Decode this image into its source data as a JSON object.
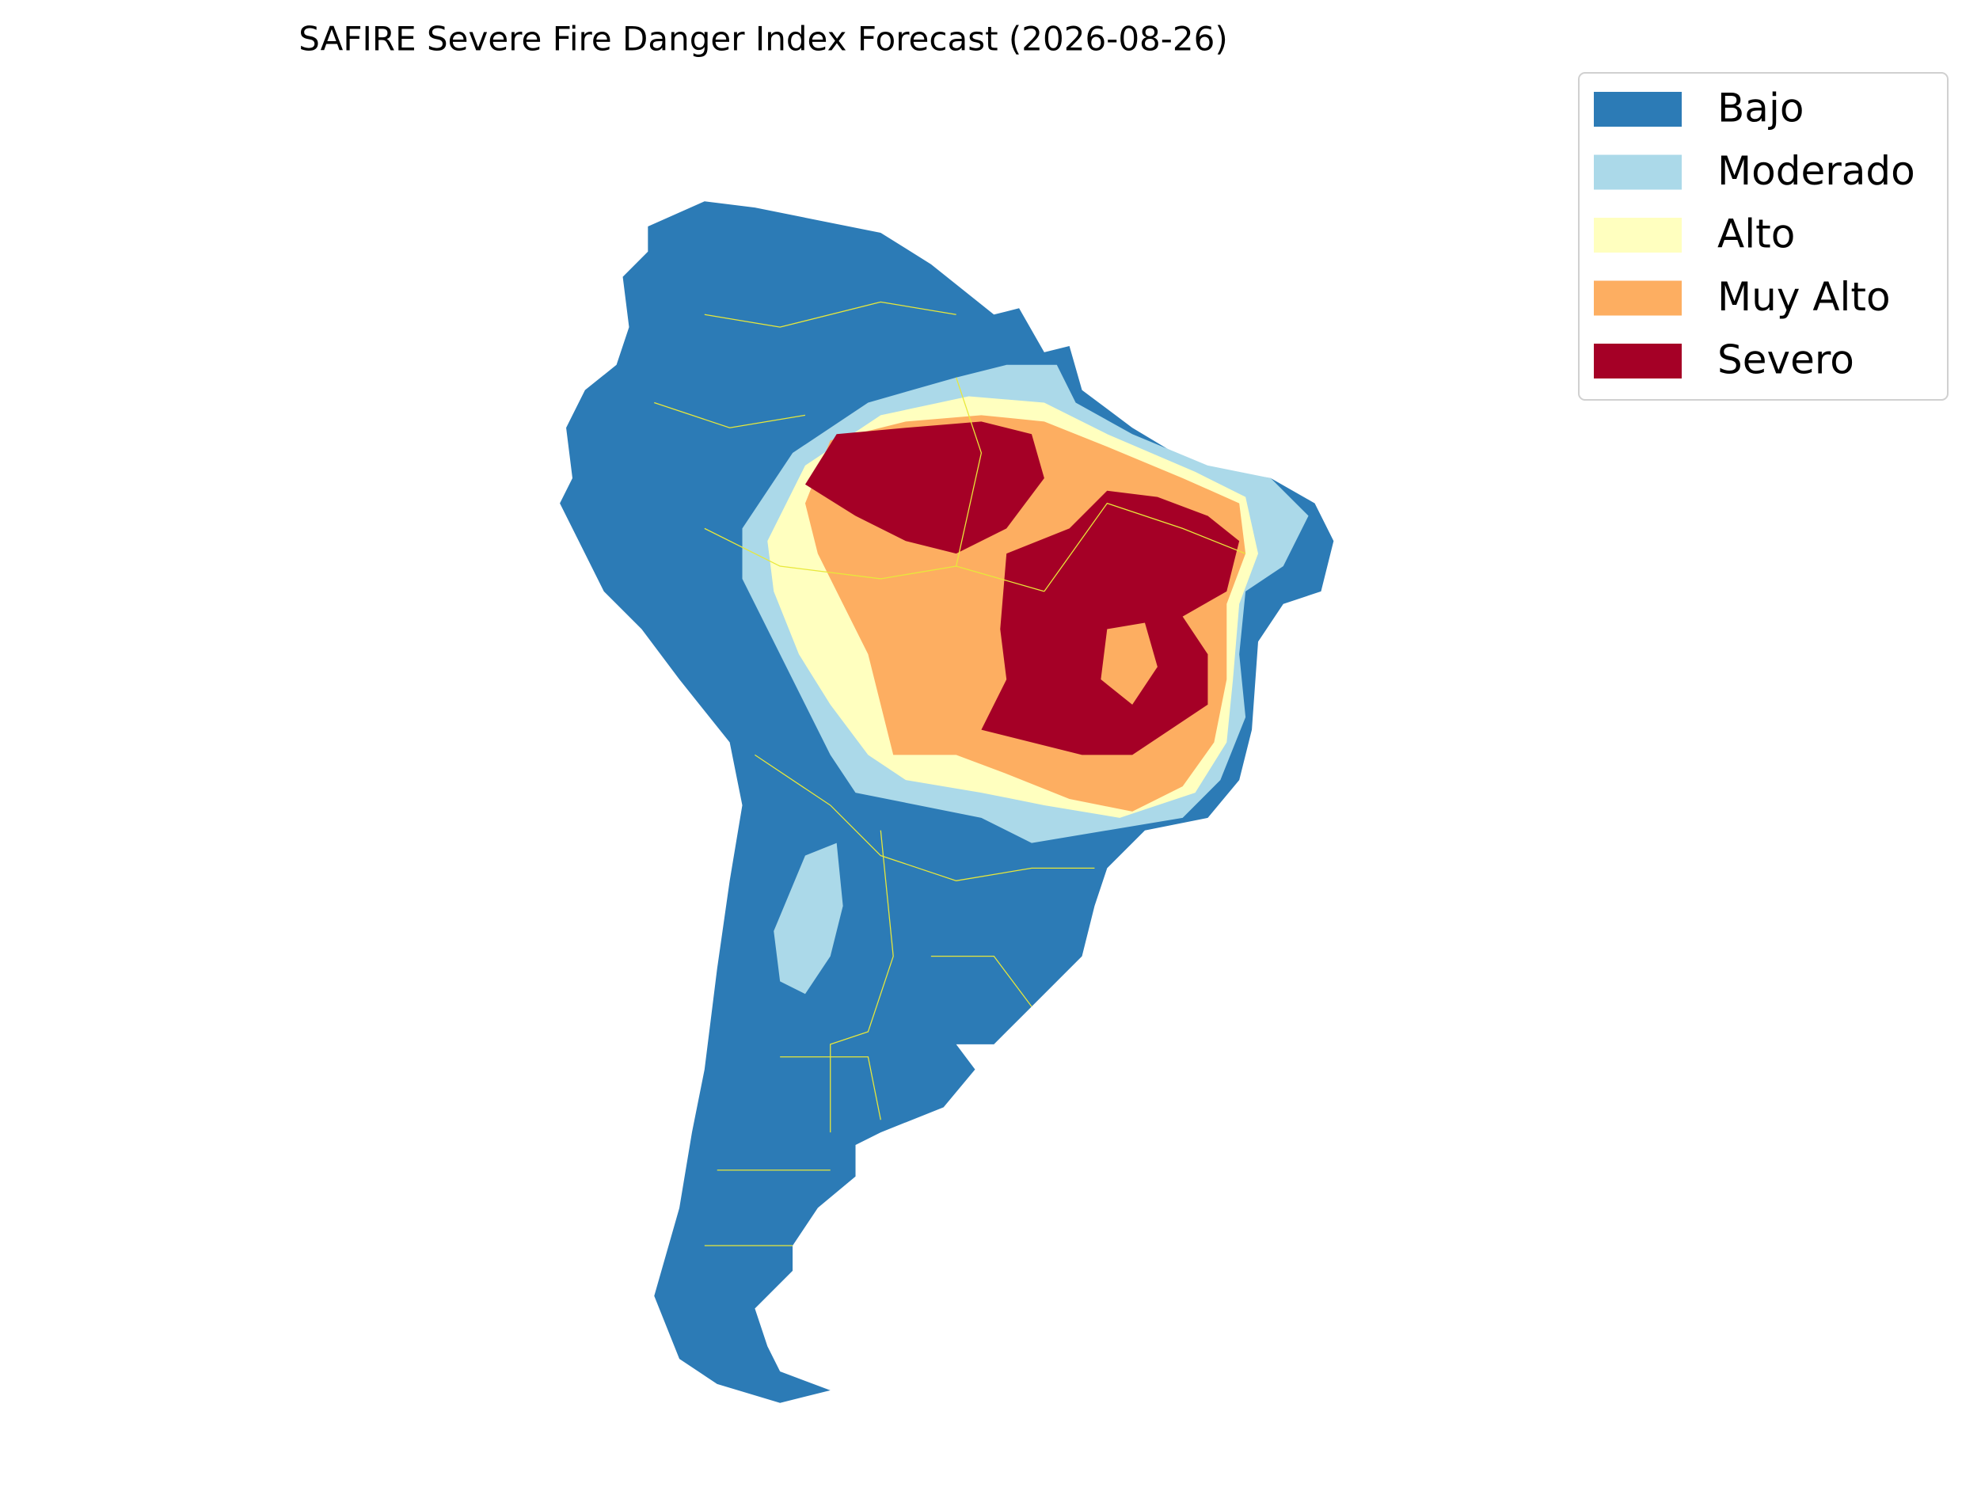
{
  "title": "SAFIRE Severe Fire Danger Index Forecast (2026-08-26)",
  "legend": [
    {
      "label": "Bajo",
      "color": "#2c7bb6"
    },
    {
      "label": "Moderado",
      "color": "#abd9e9"
    },
    {
      "label": "Alto",
      "color": "#ffffbf"
    },
    {
      "label": "Muy Alto",
      "color": "#fdae61"
    },
    {
      "label": "Severo",
      "color": "#a50026"
    }
  ]
}
